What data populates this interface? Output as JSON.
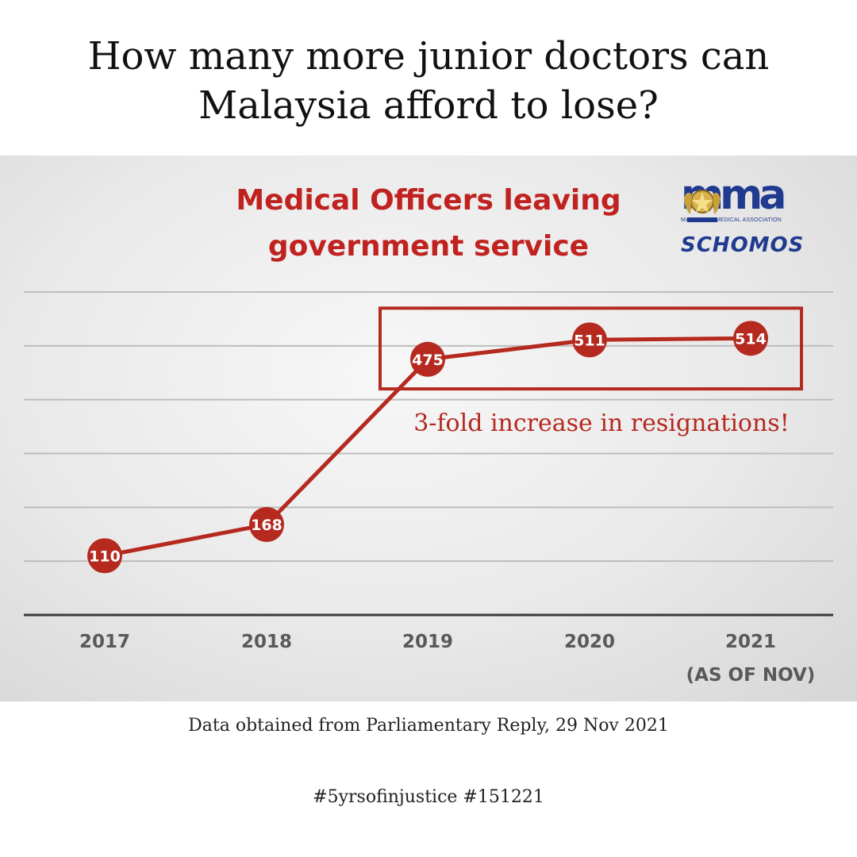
{
  "headline": {
    "line1": "How many more junior doctors can",
    "line2": "Malaysia afford to lose?"
  },
  "colors": {
    "accent_red": "#b5291f",
    "brand_blue": "#1f3a8f"
  },
  "logos": {
    "mma_word": "mma",
    "mma_sub": "MALAYSIAN MEDICAL ASSOCIATION",
    "schomos": "SCHOMOS",
    "crest_icon": "malaysian-coat-of-arms-icon"
  },
  "chart_data": {
    "type": "line",
    "title_line1": "Medical Officers leaving",
    "title_line2": "government service",
    "categories": [
      "2017",
      "2018",
      "2019",
      "2020",
      "2021"
    ],
    "category_sublabels": [
      "",
      "",
      "",
      "",
      "(AS OF NOV)"
    ],
    "series": [
      {
        "name": "Medical Officers leaving government service",
        "values": [
          110,
          168,
          475,
          511,
          514
        ]
      }
    ],
    "data_labels": [
      "110",
      "168",
      "475",
      "511",
      "514"
    ],
    "ylim": [
      0,
      600
    ],
    "grid": true,
    "highlight_categories": [
      "2019",
      "2020",
      "2021"
    ],
    "annotation": "3-fold increase in resignations!",
    "xlabel": "",
    "ylabel": ""
  },
  "footer": {
    "source": "Data obtained from Parliamentary Reply, 29 Nov 2021",
    "hashtags": "#5yrsofinjustice #151221"
  }
}
